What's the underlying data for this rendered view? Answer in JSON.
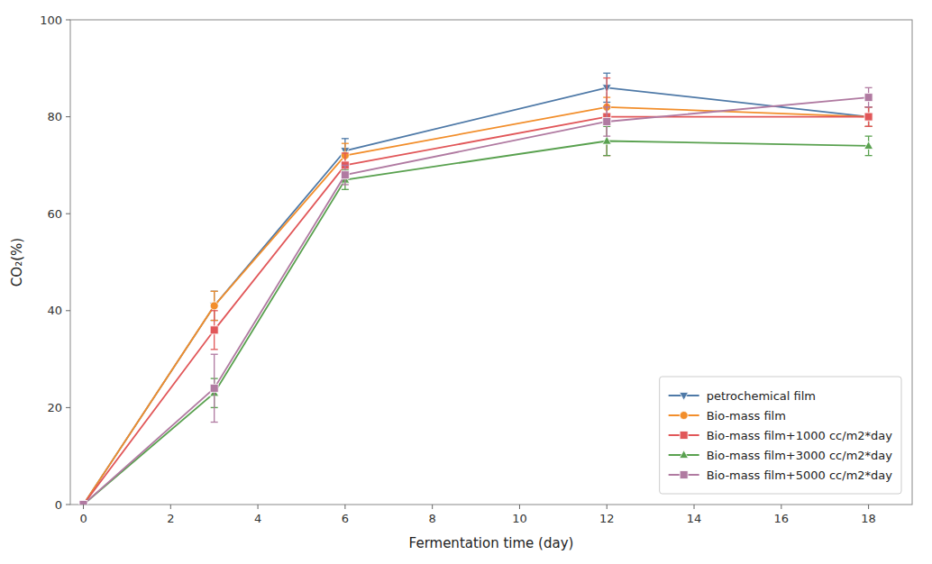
{
  "chart_data": {
    "type": "line",
    "x_label": "Fermentation time (day)",
    "y_label": "CO₂(%)",
    "x": [
      0,
      3,
      6,
      12,
      18
    ],
    "series": [
      {
        "name": "petrochemical film",
        "values": [
          0,
          41,
          73,
          86,
          80
        ],
        "errors": [
          0,
          3,
          2.5,
          3,
          2
        ],
        "marker": "triangle-down",
        "line_style": "solid"
      },
      {
        "name": "Bio-mass film",
        "values": [
          0,
          41,
          72,
          82,
          80
        ],
        "errors": [
          0,
          3,
          2.5,
          2,
          2
        ],
        "marker": "circle",
        "line_style": "solid"
      },
      {
        "name": "Bio-mass film+1000 cc/m2*day",
        "values": [
          0,
          36,
          70,
          80,
          80
        ],
        "errors": [
          0,
          4,
          2.5,
          8,
          2
        ],
        "marker": "square",
        "line_style": "solid"
      },
      {
        "name": "Bio-mass film+3000 cc/m2*day",
        "values": [
          0,
          23,
          67,
          75,
          74
        ],
        "errors": [
          0,
          3,
          2,
          3,
          2
        ],
        "marker": "triangle-up",
        "line_style": "solid"
      },
      {
        "name": "Bio-mass film+5000 cc/m2*day",
        "values": [
          0,
          24,
          68,
          79,
          84
        ],
        "errors": [
          0,
          7,
          2,
          3,
          2
        ],
        "marker": "square",
        "line_style": "solid"
      }
    ],
    "xlim": [
      -0.3,
      19
    ],
    "ylim": [
      0,
      100
    ],
    "xticks": [
      0,
      2,
      4,
      6,
      8,
      10,
      12,
      14,
      16,
      18
    ],
    "yticks": [
      0,
      20,
      40,
      60,
      80,
      100
    ],
    "grid": false,
    "legend": "lower right"
  }
}
